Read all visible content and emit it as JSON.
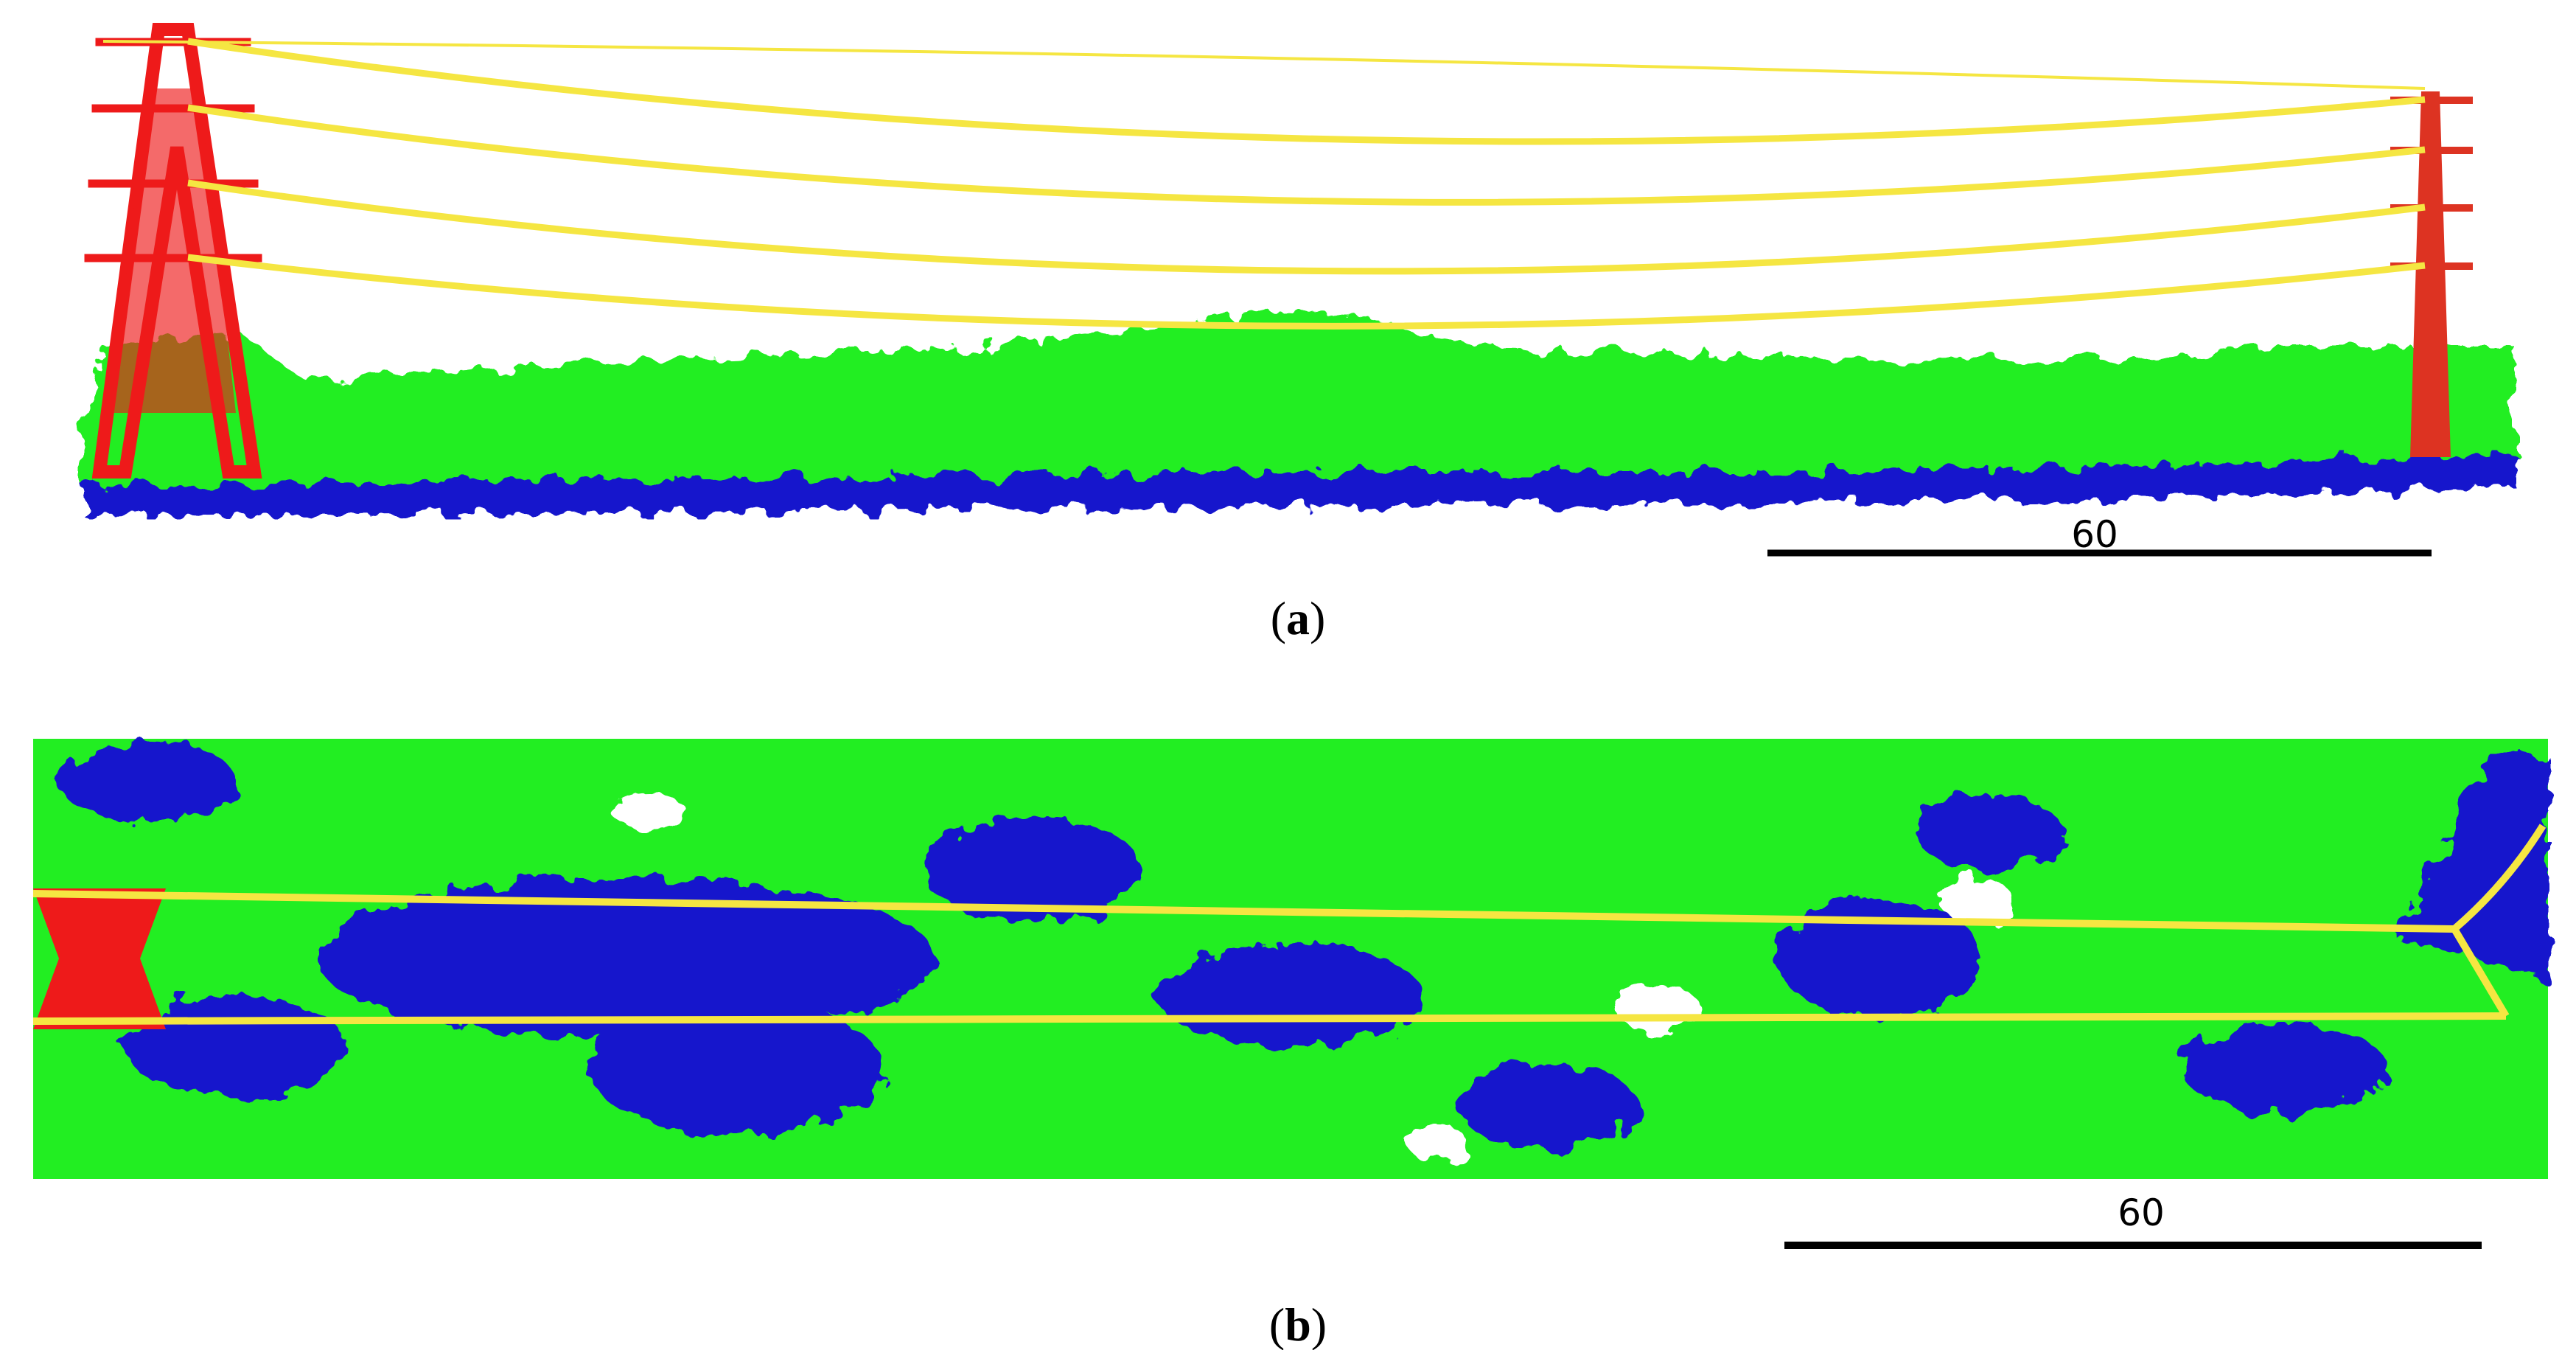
{
  "panels": [
    {
      "scale_label": "60",
      "caption": {
        "open": "(",
        "letter": "a",
        "close": ")"
      }
    },
    {
      "scale_label": "60",
      "caption": {
        "open": "(",
        "letter": "b",
        "close": ")"
      }
    }
  ]
}
